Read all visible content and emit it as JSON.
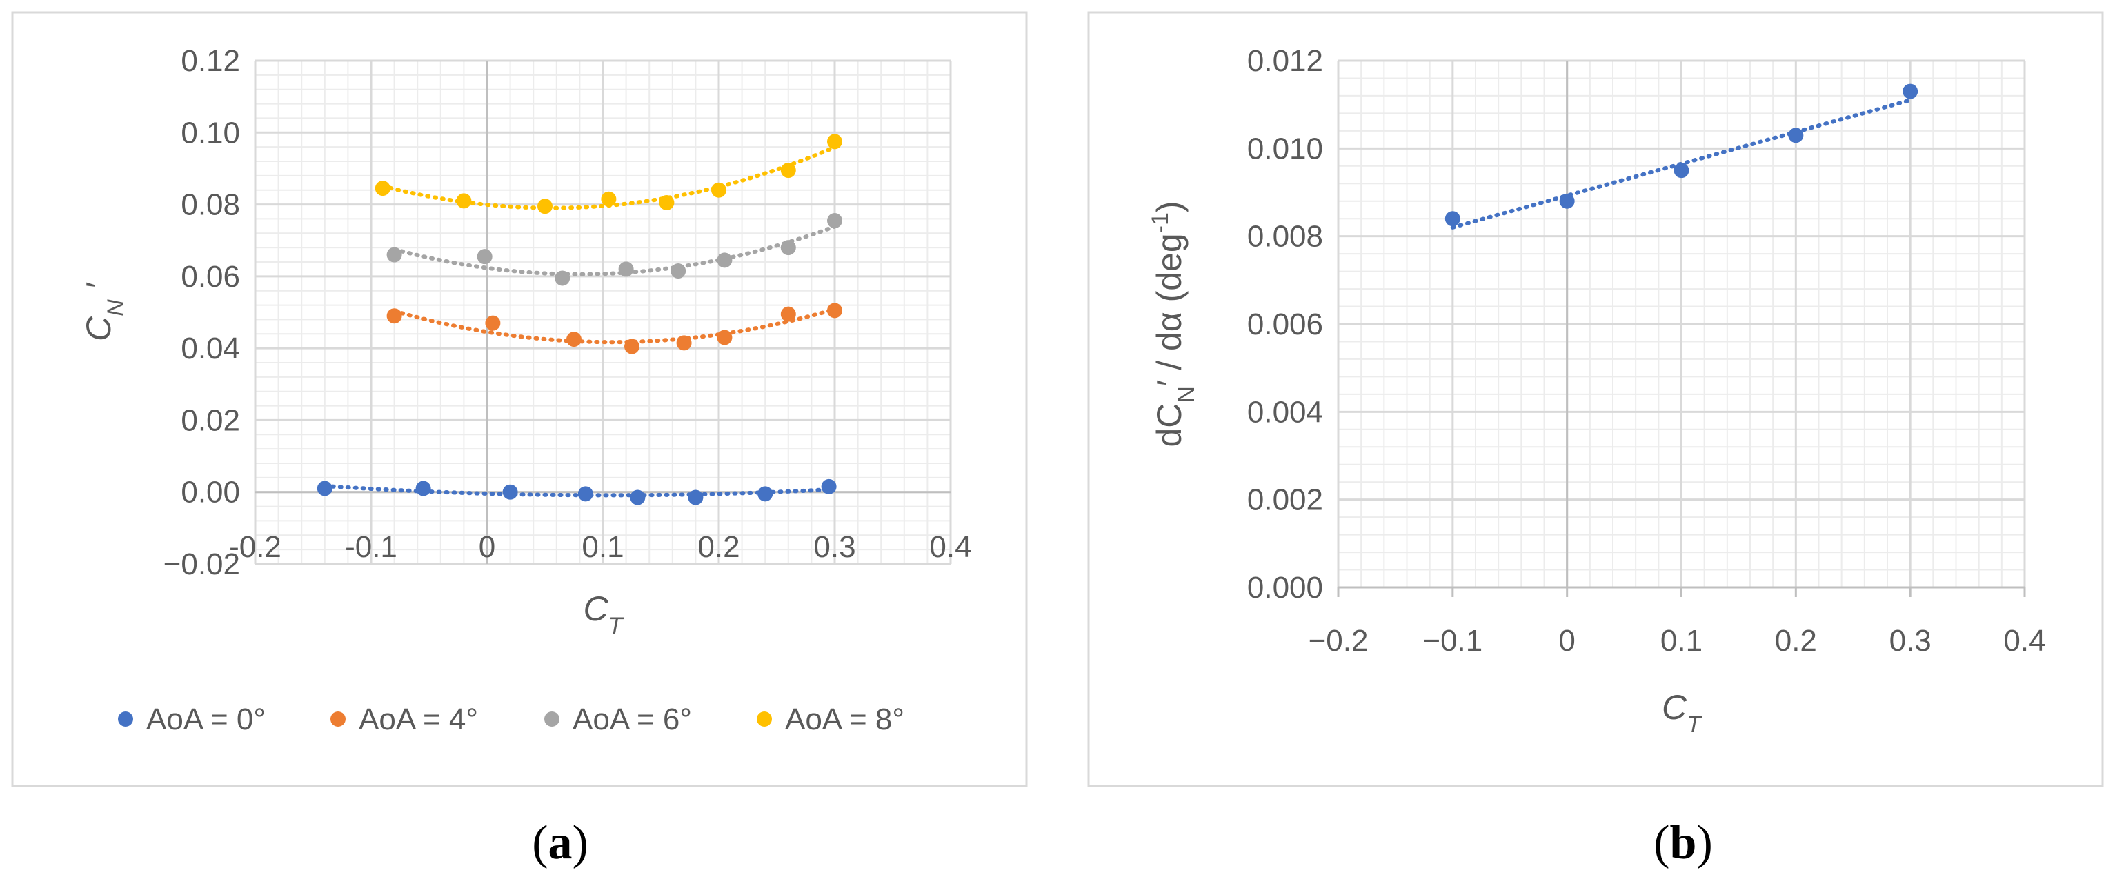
{
  "chart_data": [
    {
      "type": "scatter",
      "panel": "a",
      "caption_letter": "a",
      "xlabel": {
        "main": "C",
        "sub": "T"
      },
      "ylabel": {
        "main": "C",
        "sub": "N",
        "prime": "′"
      },
      "xlim": [
        -0.2,
        0.4
      ],
      "ylim": [
        -0.02,
        0.12
      ],
      "x_ticks": [
        -0.2,
        -0.1,
        0,
        0.1,
        0.2,
        0.3,
        0.4
      ],
      "x_tick_labels": [
        "-0.2",
        "-0.1",
        "0",
        "0.1",
        "0.2",
        "0.3",
        "0.4"
      ],
      "y_ticks": [
        -0.02,
        0.0,
        0.02,
        0.04,
        0.06,
        0.08,
        0.1,
        0.12
      ],
      "y_tick_labels": [
        "−0.02",
        "0.00",
        "0.02",
        "0.04",
        "0.06",
        "0.08",
        "0.10",
        "0.12"
      ],
      "grid": true,
      "minor_grid": true,
      "legend_position": "bottom",
      "trendline": "polynomial, order 2, dotted",
      "series": [
        {
          "name": "AoA = 0°",
          "color": "#4472C4",
          "x": [
            -0.14,
            -0.055,
            0.02,
            0.085,
            0.13,
            0.18,
            0.24,
            0.295
          ],
          "y": [
            0.001,
            0.001,
            0.0,
            -0.0005,
            -0.0015,
            -0.0015,
            -0.0005,
            0.0015
          ]
        },
        {
          "name": "AoA = 4°",
          "color": "#ED7D31",
          "x": [
            -0.08,
            0.005,
            0.075,
            0.125,
            0.17,
            0.205,
            0.26,
            0.3
          ],
          "y": [
            0.049,
            0.047,
            0.0425,
            0.0405,
            0.0415,
            0.043,
            0.0495,
            0.0505
          ]
        },
        {
          "name": "AoA = 6°",
          "color": "#A5A5A5",
          "x": [
            -0.08,
            -0.002,
            0.065,
            0.12,
            0.165,
            0.205,
            0.26,
            0.3
          ],
          "y": [
            0.066,
            0.0655,
            0.0595,
            0.062,
            0.0615,
            0.0645,
            0.068,
            0.0755
          ]
        },
        {
          "name": "AoA = 8°",
          "color": "#FFC000",
          "x": [
            -0.09,
            -0.02,
            0.05,
            0.105,
            0.155,
            0.2,
            0.26,
            0.3
          ],
          "y": [
            0.0845,
            0.081,
            0.0795,
            0.0815,
            0.0805,
            0.084,
            0.0895,
            0.0975
          ]
        }
      ]
    },
    {
      "type": "scatter",
      "panel": "b",
      "caption_letter": "b",
      "xlabel": {
        "main": "C",
        "sub": "T"
      },
      "ylabel": {
        "pre": "dC",
        "sub": "N",
        "post": "′ / dα (deg",
        "sup": "-1",
        "close": ")"
      },
      "xlim": [
        -0.2,
        0.4
      ],
      "ylim": [
        0.0,
        0.012
      ],
      "x_ticks": [
        -0.2,
        -0.1,
        0,
        0.1,
        0.2,
        0.3,
        0.4
      ],
      "x_tick_labels": [
        "−0.2",
        "−0.1",
        "0",
        "0.1",
        "0.2",
        "0.3",
        "0.4"
      ],
      "y_ticks": [
        0.0,
        0.002,
        0.004,
        0.006,
        0.008,
        0.01,
        0.012
      ],
      "y_tick_labels": [
        "0.000",
        "0.002",
        "0.004",
        "0.006",
        "0.008",
        "0.010",
        "0.012"
      ],
      "grid": true,
      "minor_grid": true,
      "trendline": "linear, dotted",
      "series": [
        {
          "name": "dCN'/dα",
          "color": "#4472C4",
          "x": [
            -0.1,
            0.0,
            0.1,
            0.2,
            0.3
          ],
          "y": [
            0.0084,
            0.0088,
            0.0095,
            0.0103,
            0.0113
          ],
          "fit": {
            "x": [
              -0.1,
              0.3
            ],
            "y": [
              0.0082,
              0.0111
            ]
          }
        }
      ]
    }
  ]
}
